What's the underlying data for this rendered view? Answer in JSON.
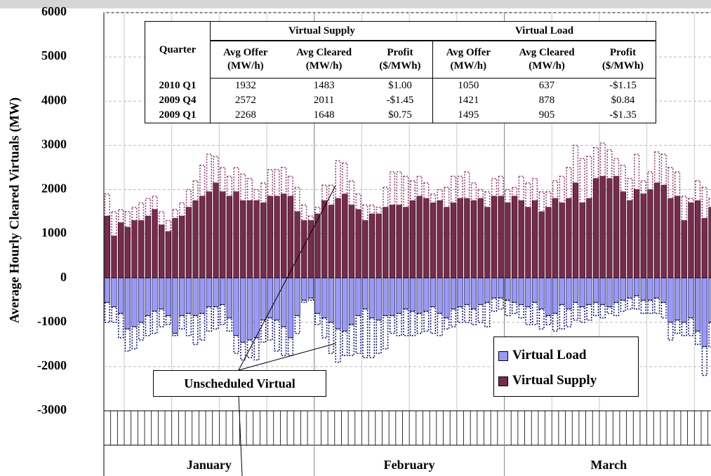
{
  "chart_data": {
    "type": "bar",
    "y_label": "Average Hourly Cleared Virtuals (MW)",
    "ylim": [
      -3000,
      6000
    ],
    "yticks": [
      -3000,
      -2000,
      -1000,
      0,
      1000,
      2000,
      3000,
      4000,
      5000,
      6000
    ],
    "grid": true,
    "month_labels": [
      "January",
      "February",
      "March"
    ],
    "annotation": "Unscheduled Virtual",
    "series": [
      {
        "name": "Virtual Load",
        "color": "#9999ff",
        "unscheduled_color": "#000080",
        "values": [
          -550,
          -650,
          -800,
          -1150,
          -1100,
          -1000,
          -850,
          -750,
          -700,
          -850,
          -1250,
          -850,
          -800,
          -850,
          -800,
          -650,
          -650,
          -600,
          -900,
          -1300,
          -1450,
          -1400,
          -1350,
          -950,
          -900,
          -950,
          -1100,
          -1350,
          -850,
          -500,
          -450,
          -800,
          -900,
          -1000,
          -1150,
          -1200,
          -1050,
          -850,
          -700,
          -900,
          -950,
          -850,
          -850,
          -800,
          -700,
          -750,
          -800,
          -750,
          -650,
          -800,
          -900,
          -700,
          -650,
          -600,
          -700,
          -600,
          -550,
          -450,
          -450,
          -500,
          -550,
          -600,
          -650,
          -550,
          -700,
          -850,
          -800,
          -600,
          -700,
          -550,
          -650,
          -600,
          -550,
          -600,
          -650,
          -550,
          -500,
          -450,
          -400,
          -500,
          -500,
          -450,
          -550,
          -1000,
          -950,
          -1000,
          -900,
          -1200,
          -1550,
          -1000
        ],
        "unscheduled": [
          -450,
          -350,
          -550,
          -500,
          -500,
          -400,
          -450,
          -500,
          -400,
          -200,
          -50,
          -300,
          -500,
          -650,
          -600,
          -550,
          -500,
          -450,
          -300,
          -400,
          -400,
          -400,
          -500,
          -500,
          -500,
          -700,
          -650,
          -400,
          -400,
          -50,
          -50,
          -250,
          -450,
          -700,
          -750,
          -550,
          -700,
          -850,
          -1100,
          -900,
          -750,
          -750,
          -400,
          -500,
          -600,
          -550,
          -450,
          -450,
          -600,
          -500,
          -250,
          -400,
          -350,
          -400,
          -350,
          -400,
          -550,
          -300,
          -250,
          -350,
          -250,
          -300,
          -400,
          -500,
          -450,
          -200,
          -400,
          -550,
          -400,
          -400,
          -350,
          -350,
          -300,
          -300,
          -150,
          -300,
          -250,
          -250,
          -300,
          -300,
          -300,
          -350,
          -350,
          -400,
          -300,
          -300,
          -400,
          -300,
          -650,
          -550
        ]
      },
      {
        "name": "Virtual Supply",
        "color": "#7a2a4c",
        "unscheduled_color": "#993366",
        "values": [
          1400,
          950,
          1250,
          1150,
          1300,
          1300,
          1400,
          1550,
          1200,
          1050,
          1350,
          1400,
          1600,
          1750,
          1850,
          1950,
          2150,
          1950,
          1850,
          1950,
          1750,
          1750,
          1750,
          1700,
          1850,
          1850,
          1900,
          1850,
          1500,
          1300,
          1300,
          1450,
          1750,
          1650,
          1800,
          1900,
          1650,
          1550,
          1300,
          1450,
          1450,
          1600,
          1650,
          1650,
          1600,
          1750,
          1850,
          1800,
          1700,
          1750,
          1600,
          1700,
          1800,
          1800,
          1750,
          1800,
          1600,
          1850,
          1850,
          1700,
          1850,
          1750,
          1600,
          1750,
          1500,
          1600,
          1800,
          1700,
          1800,
          2150,
          1700,
          1800,
          2250,
          2300,
          2250,
          2300,
          1950,
          1750,
          2000,
          1900,
          2000,
          2150,
          2100,
          1800,
          1850,
          1300,
          1700,
          1750,
          1350,
          1600
        ],
        "unscheduled": [
          500,
          550,
          300,
          350,
          300,
          400,
          400,
          300,
          300,
          250,
          200,
          300,
          400,
          450,
          700,
          850,
          600,
          550,
          450,
          550,
          600,
          500,
          250,
          450,
          600,
          600,
          600,
          450,
          550,
          350,
          100,
          150,
          350,
          450,
          850,
          700,
          550,
          350,
          350,
          200,
          150,
          450,
          750,
          750,
          700,
          450,
          450,
          350,
          200,
          250,
          450,
          600,
          500,
          600,
          400,
          200,
          350,
          400,
          450,
          300,
          200,
          550,
          550,
          500,
          450,
          350,
          400,
          600,
          700,
          850,
          1000,
          950,
          700,
          750,
          650,
          400,
          600,
          500,
          800,
          300,
          400,
          700,
          700,
          700,
          550,
          550,
          100,
          450,
          700,
          200
        ]
      }
    ],
    "table": {
      "corner": "Quarter",
      "groups": [
        "Virtual Supply",
        "Virtual Load"
      ],
      "columns": [
        [
          "Avg Offer",
          "(MW/h)"
        ],
        [
          "Avg Cleared",
          "(MW/h)"
        ],
        [
          "Profit",
          "($/MWh)"
        ],
        [
          "Avg Offer",
          "(MW/h)"
        ],
        [
          "Avg Cleared",
          "(MW/h)"
        ],
        [
          "Profit",
          "($/MWh)"
        ]
      ],
      "rows": [
        [
          "2010 Q1",
          1932,
          1483,
          "$1.00",
          1050,
          637,
          "-$1.15"
        ],
        [
          "2009 Q4",
          2572,
          2011,
          "-$1.45",
          1421,
          878,
          "$0.84"
        ],
        [
          "2009 Q1",
          2268,
          1648,
          "$0.75",
          1495,
          905,
          "-$1.35"
        ]
      ]
    }
  }
}
